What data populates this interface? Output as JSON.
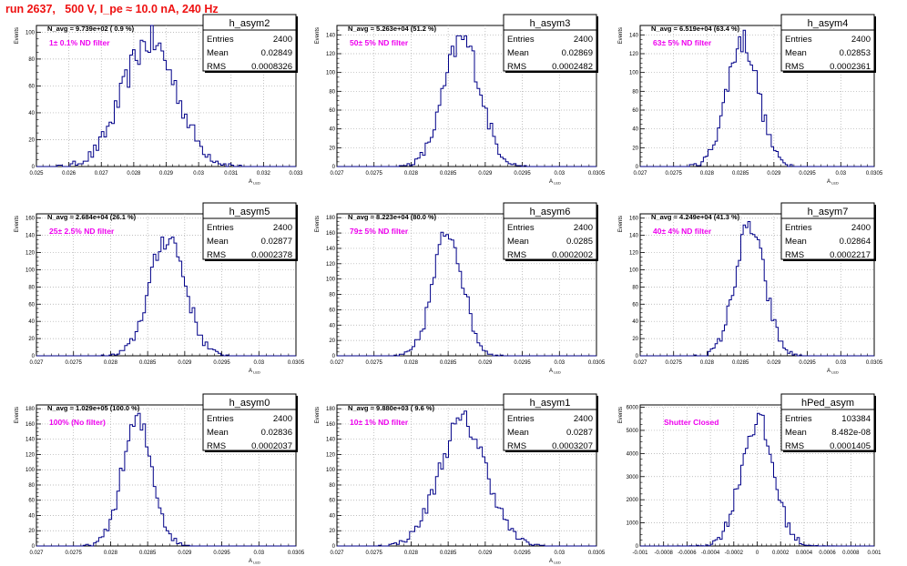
{
  "page": {
    "title": "run 2637,   500 V, I_pe ≈ 10.0 nA, 240 Hz"
  },
  "chart_data": [
    {
      "type": "histogram",
      "name": "h_asym2",
      "navg": "N_avg = 9.739e+02 ( 0.9 %)",
      "filter": "1± 0.1% ND filter",
      "stats": [
        [
          "Entries",
          "2400"
        ],
        [
          "Mean",
          "0.02849"
        ],
        [
          "RMS",
          "0.0008326"
        ]
      ],
      "ylabel": "Events",
      "xlabel": "A_{LED}",
      "xlim": [
        0.025,
        0.033
      ],
      "ylim": [
        0,
        105
      ],
      "xticks": [
        "0.025",
        "0.026",
        "0.027",
        "0.028",
        "0.029",
        "0.03",
        "0.031",
        "0.032",
        "0.033"
      ],
      "yticks": [
        0,
        20,
        40,
        60,
        80,
        100
      ],
      "mean": 0.02849,
      "rms": 0.0008326,
      "peak": 100
    },
    {
      "type": "histogram",
      "name": "h_asym3",
      "navg": "N_avg = 5.263e+04 (51.2 %)",
      "filter": "50± 5% ND filter",
      "stats": [
        [
          "Entries",
          "2400"
        ],
        [
          "Mean",
          "0.02869"
        ],
        [
          "RMS",
          "0.0002482"
        ]
      ],
      "ylabel": "Events",
      "xlabel": "A_{LED}",
      "xlim": [
        0.027,
        0.0305
      ],
      "ylim": [
        0,
        150
      ],
      "xticks": [
        "0.027",
        "0.0275",
        "0.028",
        "0.0285",
        "0.029",
        "0.0295",
        "0.03",
        "0.0305"
      ],
      "yticks": [
        0,
        20,
        40,
        60,
        80,
        100,
        120,
        140
      ],
      "mean": 0.02869,
      "rms": 0.0002482,
      "peak": 145
    },
    {
      "type": "histogram",
      "name": "h_asym4",
      "navg": "N_avg = 6.519e+04 (63.4 %)",
      "filter": "63± 5% ND filter",
      "stats": [
        [
          "Entries",
          "2400"
        ],
        [
          "Mean",
          "0.02853"
        ],
        [
          "RMS",
          "0.0002361"
        ]
      ],
      "ylabel": "Events",
      "xlabel": "A_{LED}",
      "xlim": [
        0.027,
        0.0305
      ],
      "ylim": [
        0,
        150
      ],
      "xticks": [
        "0.027",
        "0.0275",
        "0.028",
        "0.0285",
        "0.029",
        "0.0295",
        "0.03",
        "0.0305"
      ],
      "yticks": [
        0,
        20,
        40,
        60,
        80,
        100,
        120,
        140
      ],
      "mean": 0.02853,
      "rms": 0.0002361,
      "peak": 145
    },
    {
      "type": "histogram",
      "name": "h_asym5",
      "navg": "N_avg = 2.684e+04 (26.1 %)",
      "filter": "25± 2.5% ND filter",
      "stats": [
        [
          "Entries",
          "2400"
        ],
        [
          "Mean",
          "0.02877"
        ],
        [
          "RMS",
          "0.0002378"
        ]
      ],
      "ylabel": "Events",
      "xlabel": "A_{LED}",
      "xlim": [
        0.027,
        0.0305
      ],
      "ylim": [
        0,
        165
      ],
      "xticks": [
        "0.027",
        "0.0275",
        "0.028",
        "0.0285",
        "0.029",
        "0.0295",
        "0.03",
        "0.0305"
      ],
      "yticks": [
        0,
        20,
        40,
        60,
        80,
        100,
        120,
        140,
        160
      ],
      "mean": 0.02877,
      "rms": 0.0002378,
      "peak": 150
    },
    {
      "type": "histogram",
      "name": "h_asym6",
      "navg": "N_avg = 8.223e+04 (80.0 %)",
      "filter": "79± 5% ND filter",
      "stats": [
        [
          "Entries",
          "2400"
        ],
        [
          "Mean",
          "0.0285"
        ],
        [
          "RMS",
          "0.0002002"
        ]
      ],
      "ylabel": "Events",
      "xlabel": "A_{LED}",
      "xlim": [
        0.027,
        0.0305
      ],
      "ylim": [
        0,
        185
      ],
      "xticks": [
        "0.027",
        "0.0275",
        "0.028",
        "0.0285",
        "0.029",
        "0.0295",
        "0.03",
        "0.0305"
      ],
      "yticks": [
        0,
        20,
        40,
        60,
        80,
        100,
        120,
        140,
        160,
        180
      ],
      "mean": 0.0285,
      "rms": 0.0002002,
      "peak": 175
    },
    {
      "type": "histogram",
      "name": "h_asym7",
      "navg": "N_avg = 4.249e+04 (41.3 %)",
      "filter": "40± 4% ND filter",
      "stats": [
        [
          "Entries",
          "2400"
        ],
        [
          "Mean",
          "0.02864"
        ],
        [
          "RMS",
          "0.0002217"
        ]
      ],
      "ylabel": "Events",
      "xlabel": "A_{LED}",
      "xlim": [
        0.027,
        0.0305
      ],
      "ylim": [
        0,
        165
      ],
      "xticks": [
        "0.027",
        "0.0275",
        "0.028",
        "0.0285",
        "0.029",
        "0.0295",
        "0.03",
        "0.0305"
      ],
      "yticks": [
        0,
        20,
        40,
        60,
        80,
        100,
        120,
        140,
        160
      ],
      "mean": 0.02864,
      "rms": 0.0002217,
      "peak": 160
    },
    {
      "type": "histogram",
      "name": "h_asym0",
      "navg": "N_avg = 1.029e+05 (100.0 %)",
      "filter": "100% (No filter)",
      "stats": [
        [
          "Entries",
          "2400"
        ],
        [
          "Mean",
          "0.02836"
        ],
        [
          "RMS",
          "0.0002037"
        ]
      ],
      "ylabel": "Events",
      "xlabel": "A_{LED}",
      "xlim": [
        0.027,
        0.0305
      ],
      "ylim": [
        0,
        185
      ],
      "xticks": [
        "0.027",
        "0.0275",
        "0.028",
        "0.0285",
        "0.029",
        "0.0295",
        "0.03",
        "0.0305"
      ],
      "yticks": [
        0,
        20,
        40,
        60,
        80,
        100,
        120,
        140,
        160,
        180
      ],
      "mean": 0.02836,
      "rms": 0.0002037,
      "peak": 175
    },
    {
      "type": "histogram",
      "name": "h_asym1",
      "navg": "N_avg = 9.880e+03 ( 9.6 %)",
      "filter": "10± 1% ND filter",
      "stats": [
        [
          "Entries",
          "2400"
        ],
        [
          "Mean",
          "0.0287"
        ],
        [
          "RMS",
          "0.0003207"
        ]
      ],
      "ylabel": "Events",
      "xlabel": "A_{LED}",
      "xlim": [
        0.027,
        0.0305
      ],
      "ylim": [
        0,
        185
      ],
      "xticks": [
        "0.027",
        "0.0275",
        "0.028",
        "0.0285",
        "0.029",
        "0.0295",
        "0.03",
        "0.0305"
      ],
      "yticks": [
        0,
        20,
        40,
        60,
        80,
        100,
        120,
        140,
        160,
        180
      ],
      "mean": 0.0287,
      "rms": 0.0003207,
      "peak": 175
    },
    {
      "type": "histogram",
      "name": "hPed_asym",
      "navg": "",
      "filter": "Shutter Closed",
      "stats": [
        [
          "Entries",
          "103384"
        ],
        [
          "Mean",
          "8.482e-08"
        ],
        [
          "RMS",
          "0.0001405"
        ]
      ],
      "ylabel": "Events",
      "xlabel": "",
      "xlim": [
        -0.001,
        0.001
      ],
      "ylim": [
        0,
        6100
      ],
      "xticks": [
        "-0.001",
        "-0.0008",
        "-0.0006",
        "-0.0004",
        "-0.0002",
        "0",
        "0.0002",
        "0.0004",
        "0.0006",
        "0.0008",
        "0.001"
      ],
      "yticks": [
        0,
        1000,
        2000,
        3000,
        4000,
        5000,
        6000
      ],
      "mean": 0.0,
      "rms": 0.0001405,
      "peak": 5800
    }
  ],
  "colors": {
    "line": "#000088",
    "filter_label": "#ee00ee",
    "title": "#ee1111",
    "grid": "#aaaaaa"
  }
}
